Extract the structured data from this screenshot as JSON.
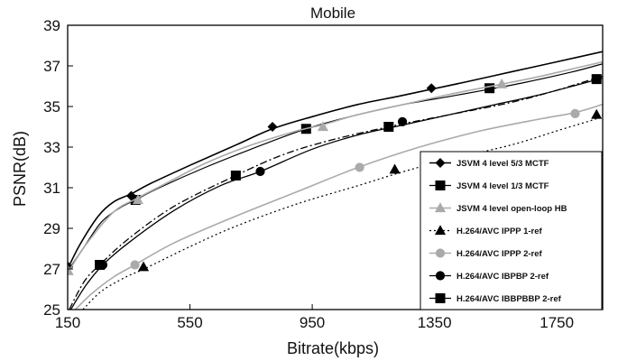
{
  "chart_data": {
    "type": "line",
    "title": "Mobile",
    "xlabel": "Bitrate(kbps)",
    "ylabel": "PSNR(dB)",
    "xlim": [
      150,
      1900
    ],
    "ylim": [
      25,
      39
    ],
    "xticks": [
      150,
      550,
      950,
      1350,
      1750
    ],
    "yticks": [
      25,
      27,
      29,
      31,
      33,
      35,
      37,
      39
    ],
    "grid": false,
    "legend_position": "bottom-right",
    "series": [
      {
        "name": "JSVM 4 level 5/3 MCTF",
        "color": "#000000",
        "dash": "",
        "marker": "diamond",
        "width": 1.6,
        "curve": [
          [
            150,
            27.0
          ],
          [
            190,
            28.2
          ],
          [
            250,
            29.6
          ],
          [
            300,
            30.3
          ],
          [
            358,
            30.7
          ],
          [
            420,
            31.2
          ],
          [
            550,
            32.1
          ],
          [
            700,
            33.1
          ],
          [
            820,
            33.9
          ],
          [
            950,
            34.5
          ],
          [
            1100,
            35.1
          ],
          [
            1230,
            35.5
          ],
          [
            1340,
            35.85
          ],
          [
            1450,
            36.2
          ],
          [
            1600,
            36.7
          ],
          [
            1750,
            37.2
          ],
          [
            1900,
            37.7
          ]
        ],
        "markers": [
          [
            152,
            27.1
          ],
          [
            358,
            30.6
          ],
          [
            820,
            34.0
          ],
          [
            1340,
            35.9
          ]
        ]
      },
      {
        "name": "JSVM 4 level 1/3 MCTF",
        "color": "#000000",
        "dash": "",
        "marker": "square",
        "width": 1.2,
        "curve": [
          [
            150,
            26.9
          ],
          [
            200,
            28.0
          ],
          [
            260,
            29.3
          ],
          [
            320,
            30.0
          ],
          [
            372,
            30.4
          ],
          [
            450,
            31.0
          ],
          [
            600,
            32.0
          ],
          [
            750,
            32.9
          ],
          [
            930,
            33.9
          ],
          [
            1100,
            34.6
          ],
          [
            1250,
            35.1
          ],
          [
            1400,
            35.5
          ],
          [
            1530,
            35.85
          ],
          [
            1650,
            36.2
          ],
          [
            1800,
            36.7
          ],
          [
            1900,
            37.1
          ]
        ],
        "markers": [
          [
            372,
            30.4
          ],
          [
            930,
            33.9
          ],
          [
            1530,
            35.9
          ]
        ]
      },
      {
        "name": "JSVM 4 level open-loop HB",
        "color": "#aaaaaa",
        "dash": "",
        "marker": "triangle",
        "width": 1.6,
        "curve": [
          [
            150,
            26.8
          ],
          [
            210,
            28.2
          ],
          [
            300,
            29.8
          ],
          [
            380,
            30.5
          ],
          [
            470,
            31.2
          ],
          [
            600,
            32.2
          ],
          [
            750,
            33.1
          ],
          [
            900,
            33.8
          ],
          [
            985,
            34.1
          ],
          [
            1100,
            34.6
          ],
          [
            1250,
            35.1
          ],
          [
            1400,
            35.6
          ],
          [
            1570,
            36.1
          ],
          [
            1700,
            36.5
          ],
          [
            1900,
            37.2
          ]
        ],
        "markers": [
          [
            152,
            26.9
          ],
          [
            380,
            30.4
          ],
          [
            985,
            34.0
          ],
          [
            1570,
            36.1
          ]
        ]
      },
      {
        "name": "H.264/AVC IPPP 1-ref",
        "color": "#000000",
        "dash": "2,3",
        "marker": "triangle",
        "width": 1.2,
        "curve": [
          [
            200,
            25.0
          ],
          [
            260,
            25.9
          ],
          [
            340,
            26.6
          ],
          [
            400,
            27.0
          ],
          [
            550,
            28.1
          ],
          [
            700,
            29.1
          ],
          [
            900,
            30.2
          ],
          [
            1100,
            31.1
          ],
          [
            1250,
            31.8
          ],
          [
            1400,
            32.4
          ],
          [
            1600,
            33.1
          ],
          [
            1750,
            33.8
          ],
          [
            1880,
            34.4
          ],
          [
            1900,
            34.6
          ]
        ],
        "markers": [
          [
            398,
            27.1
          ],
          [
            1220,
            31.9
          ],
          [
            1880,
            34.6
          ]
        ]
      },
      {
        "name": "H.264/AVC IPPP 2-ref",
        "color": "#aaaaaa",
        "dash": "",
        "marker": "circle",
        "width": 1.6,
        "curve": [
          [
            175,
            25.0
          ],
          [
            230,
            25.8
          ],
          [
            300,
            26.6
          ],
          [
            370,
            27.2
          ],
          [
            500,
            28.3
          ],
          [
            700,
            29.6
          ],
          [
            900,
            30.8
          ],
          [
            1100,
            32.0
          ],
          [
            1300,
            33.0
          ],
          [
            1500,
            33.8
          ],
          [
            1700,
            34.4
          ],
          [
            1810,
            34.7
          ],
          [
            1900,
            35.1
          ]
        ],
        "markers": [
          [
            370,
            27.2
          ],
          [
            1105,
            32.0
          ],
          [
            1810,
            34.65
          ]
        ]
      },
      {
        "name": "H.264/AVC IBPBP 2-ref",
        "color": "#000000",
        "dash": "",
        "marker": "circle",
        "width": 1.3,
        "curve": [
          [
            160,
            25.0
          ],
          [
            210,
            26.2
          ],
          [
            265,
            27.2
          ],
          [
            350,
            28.3
          ],
          [
            500,
            29.9
          ],
          [
            650,
            31.1
          ],
          [
            780,
            31.8
          ],
          [
            950,
            32.9
          ],
          [
            1100,
            33.6
          ],
          [
            1250,
            34.1
          ],
          [
            1400,
            34.6
          ],
          [
            1550,
            35.1
          ],
          [
            1700,
            35.6
          ],
          [
            1900,
            36.4
          ]
        ],
        "markers": [
          [
            265,
            27.2
          ],
          [
            780,
            31.8
          ],
          [
            1245,
            34.25
          ],
          [
            1880,
            36.35
          ]
        ]
      },
      {
        "name": "H.264/AVC IBBPBBP 2-ref",
        "color": "#000000",
        "dash": "8,3,2,3",
        "marker": "square",
        "width": 1.3,
        "curve": [
          [
            155,
            25.0
          ],
          [
            205,
            26.4
          ],
          [
            255,
            27.2
          ],
          [
            350,
            28.5
          ],
          [
            500,
            30.1
          ],
          [
            700,
            31.6
          ],
          [
            850,
            32.6
          ],
          [
            1000,
            33.3
          ],
          [
            1200,
            34.0
          ],
          [
            1400,
            34.6
          ],
          [
            1600,
            35.2
          ],
          [
            1750,
            35.8
          ],
          [
            1900,
            36.5
          ]
        ],
        "markers": [
          [
            255,
            27.2
          ],
          [
            700,
            31.6
          ],
          [
            1200,
            34.0
          ],
          [
            1880,
            36.35
          ]
        ]
      }
    ]
  }
}
